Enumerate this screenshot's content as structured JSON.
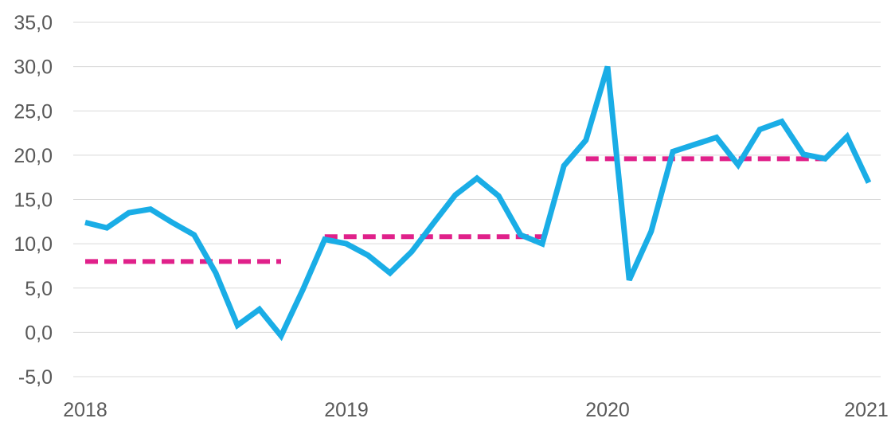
{
  "chart_data": {
    "type": "line",
    "title": "",
    "xlabel": "",
    "ylabel": "",
    "ylim": [
      -5,
      35
    ],
    "y_ticks": [
      "-5,0",
      "0,0",
      "5,0",
      "10,0",
      "15,0",
      "20,0",
      "25,0",
      "30,0",
      "35,0"
    ],
    "y_tick_values": [
      -5,
      0,
      5,
      10,
      15,
      20,
      25,
      30,
      35
    ],
    "x_ticks": [
      "2018",
      "2019",
      "2020",
      "2021"
    ],
    "x_range": [
      2018,
      2021
    ],
    "grid": "horizontal",
    "legend": "none",
    "series": [
      {
        "style": "solid",
        "color": "#1AADE6",
        "x": [
          2018.0,
          2018.083,
          2018.167,
          2018.25,
          2018.333,
          2018.417,
          2018.5,
          2018.583,
          2018.667,
          2018.75,
          2018.833,
          2018.917,
          2019.0,
          2019.083,
          2019.167,
          2019.25,
          2019.333,
          2019.417,
          2019.5,
          2019.583,
          2019.667,
          2019.75,
          2019.833,
          2019.917,
          2020.0,
          2020.083,
          2020.167,
          2020.25,
          2020.333,
          2020.417,
          2020.5,
          2020.583,
          2020.667,
          2020.75,
          2020.833,
          2020.917,
          2021.0
        ],
        "values": [
          12.4,
          11.8,
          13.5,
          13.9,
          12.4,
          11.0,
          6.7,
          0.8,
          2.6,
          -0.4,
          4.8,
          10.5,
          10.0,
          8.7,
          6.7,
          9.1,
          12.3,
          15.5,
          17.4,
          15.4,
          11.0,
          10.0,
          18.8,
          21.7,
          30.0,
          5.9,
          11.4,
          20.4,
          21.2,
          22.0,
          18.9,
          22.9,
          23.8,
          20.1,
          19.6,
          22.1,
          16.9
        ]
      },
      {
        "style": "dashed",
        "color": "#E0218A",
        "segments": [
          {
            "x": [
              2018.0,
              2018.75
            ],
            "value": 8.0
          },
          {
            "x": [
              2018.917,
              2019.75
            ],
            "value": 10.8
          },
          {
            "x": [
              2019.917,
              2020.833
            ],
            "value": 19.6
          }
        ]
      }
    ]
  }
}
